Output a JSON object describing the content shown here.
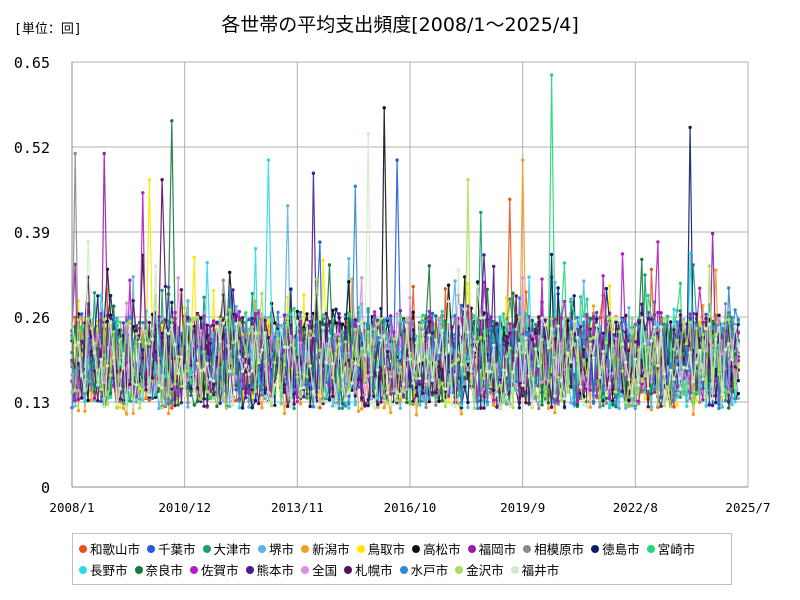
{
  "chart_data": {
    "type": "line",
    "title": "各世帯の平均支出頻度[2008/1～2025/4]",
    "unit_label": "[単位：回]",
    "x_ticks": [
      "2008/1",
      "2010/12",
      "2013/11",
      "2016/10",
      "2019/9",
      "2022/8",
      "2025/7"
    ],
    "y_ticks": [
      "0",
      "0.13",
      "0.26",
      "0.39",
      "0.52",
      "0.65"
    ],
    "ylim": [
      0,
      0.65
    ],
    "x_range": [
      "2008-01",
      "2025-07"
    ],
    "grid": true,
    "legend_position": "bottom",
    "series": [
      {
        "name": "和歌山市",
        "color": "#e8531c",
        "level": 0.19,
        "spread": 0.07,
        "peak": 0.44
      },
      {
        "name": "千葉市",
        "color": "#1f5ce0",
        "level": 0.2,
        "spread": 0.07,
        "peak": 0.5
      },
      {
        "name": "大津市",
        "color": "#1b9e77",
        "level": 0.19,
        "spread": 0.07,
        "peak": 0.42
      },
      {
        "name": "堺市",
        "color": "#59b4e8",
        "level": 0.19,
        "spread": 0.07,
        "peak": 0.43
      },
      {
        "name": "新潟市",
        "color": "#f0a020",
        "level": 0.18,
        "spread": 0.07,
        "peak": 0.5
      },
      {
        "name": "鳥取市",
        "color": "#ffe600",
        "level": 0.19,
        "spread": 0.07,
        "peak": 0.47
      },
      {
        "name": "高松市",
        "color": "#111111",
        "level": 0.2,
        "spread": 0.07,
        "peak": 0.58
      },
      {
        "name": "福岡市",
        "color": "#9b1aa8",
        "level": 0.2,
        "spread": 0.07,
        "peak": 0.51
      },
      {
        "name": "相模原市",
        "color": "#8a8a8a",
        "level": 0.19,
        "spread": 0.07,
        "peak": 0.51
      },
      {
        "name": "徳島市",
        "color": "#0b1f66",
        "level": 0.19,
        "spread": 0.07,
        "peak": 0.55
      },
      {
        "name": "宮崎市",
        "color": "#22d67a",
        "level": 0.2,
        "spread": 0.07,
        "peak": 0.63
      },
      {
        "name": "長野市",
        "color": "#2fd8e8",
        "level": 0.19,
        "spread": 0.07,
        "peak": 0.5
      },
      {
        "name": "奈良市",
        "color": "#137a3a",
        "level": 0.19,
        "spread": 0.07,
        "peak": 0.56
      },
      {
        "name": "佐賀市",
        "color": "#b01fbf",
        "level": 0.2,
        "spread": 0.07,
        "peak": 0.45
      },
      {
        "name": "熊本市",
        "color": "#4a1b8c",
        "level": 0.19,
        "spread": 0.07,
        "peak": 0.48
      },
      {
        "name": "全国",
        "color": "#d98ee8",
        "level": 0.19,
        "spread": 0.05,
        "peak": 0.32
      },
      {
        "name": "札幌市",
        "color": "#5a0f5e",
        "level": 0.19,
        "spread": 0.07,
        "peak": 0.47
      },
      {
        "name": "水戸市",
        "color": "#2e86d6",
        "level": 0.19,
        "spread": 0.07,
        "peak": 0.46
      },
      {
        "name": "金沢市",
        "color": "#a8e05a",
        "level": 0.19,
        "spread": 0.07,
        "peak": 0.47
      },
      {
        "name": "福井市",
        "color": "#cdeec4",
        "level": 0.19,
        "spread": 0.07,
        "peak": 0.54
      }
    ]
  }
}
